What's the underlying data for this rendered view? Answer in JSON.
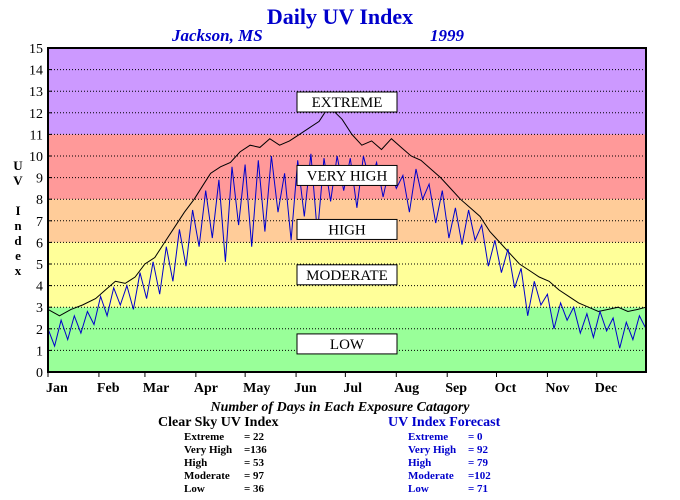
{
  "title": "Daily UV Index",
  "location": "Jackson, MS",
  "year": "1999",
  "ylabel_letters": [
    "U",
    "V",
    "",
    "I",
    "n",
    "d",
    "e",
    "x"
  ],
  "caption": "Number of Days in Each Exposure Catagory",
  "clear_sky": {
    "title": "Clear Sky UV Index",
    "rows": [
      {
        "label": "Extreme",
        "value": "= 22"
      },
      {
        "label": "Very High",
        "value": "=136"
      },
      {
        "label": "High",
        "value": "= 53"
      },
      {
        "label": "Moderate",
        "value": "= 97"
      },
      {
        "label": "Low",
        "value": "= 36"
      }
    ]
  },
  "forecast": {
    "title": "UV Index Forecast",
    "rows": [
      {
        "label": "Extreme",
        "value": "= 0"
      },
      {
        "label": "Very High",
        "value": "= 92"
      },
      {
        "label": "High",
        "value": "= 79"
      },
      {
        "label": "Moderate",
        "value": "=102"
      },
      {
        "label": "Low",
        "value": "= 71"
      }
    ]
  },
  "colors": {
    "low": "#99ff99",
    "moderate": "#ffff99",
    "high": "#ffcc99",
    "very_high": "#ff9999",
    "extreme": "#cc99ff",
    "clear_sky_line": "#000000",
    "forecast_line": "#0000cc"
  },
  "chart_data": {
    "type": "line",
    "ylim": [
      0,
      15
    ],
    "yticks": [
      0,
      1,
      2,
      3,
      4,
      5,
      6,
      7,
      8,
      9,
      10,
      11,
      12,
      13,
      14,
      15
    ],
    "xlim": [
      1,
      365
    ],
    "month_labels": [
      "Jan",
      "Feb",
      "Mar",
      "Apr",
      "May",
      "Jun",
      "Jul",
      "Aug",
      "Sep",
      "Oct",
      "Nov",
      "Dec"
    ],
    "month_start_days": [
      1,
      32,
      60,
      91,
      121,
      152,
      182,
      213,
      244,
      274,
      305,
      335
    ],
    "grid": true,
    "bands": [
      {
        "label": "LOW",
        "from": 0,
        "to": 3,
        "color": "#99ff99"
      },
      {
        "label": "MODERATE",
        "from": 3,
        "to": 6,
        "color": "#ffff99"
      },
      {
        "label": "HIGH",
        "from": 6,
        "to": 8,
        "color": "#ffcc99"
      },
      {
        "label": "VERY HIGH",
        "from": 8,
        "to": 11,
        "color": "#ff9999"
      },
      {
        "label": "EXTREME",
        "from": 11,
        "to": 15,
        "color": "#cc99ff"
      }
    ],
    "band_labels": [
      {
        "text": "EXTREME",
        "y": 12.5
      },
      {
        "text": "VERY HIGH",
        "y": 9.1
      },
      {
        "text": "HIGH",
        "y": 6.6
      },
      {
        "text": "MODERATE",
        "y": 4.5
      },
      {
        "text": "LOW",
        "y": 1.3
      }
    ],
    "series": [
      {
        "name": "Clear Sky UV Index",
        "color": "#000000",
        "points": [
          [
            1,
            2.9
          ],
          [
            8,
            2.6
          ],
          [
            15,
            2.9
          ],
          [
            22,
            3.1
          ],
          [
            30,
            3.4
          ],
          [
            36,
            3.8
          ],
          [
            42,
            4.2
          ],
          [
            48,
            4.1
          ],
          [
            54,
            4.4
          ],
          [
            60,
            5.0
          ],
          [
            66,
            5.3
          ],
          [
            72,
            6.0
          ],
          [
            78,
            6.7
          ],
          [
            84,
            7.4
          ],
          [
            90,
            8.0
          ],
          [
            95,
            8.6
          ],
          [
            100,
            9.2
          ],
          [
            106,
            9.5
          ],
          [
            112,
            9.7
          ],
          [
            118,
            10.2
          ],
          [
            124,
            10.5
          ],
          [
            130,
            10.4
          ],
          [
            136,
            10.8
          ],
          [
            142,
            10.5
          ],
          [
            148,
            10.7
          ],
          [
            154,
            11.0
          ],
          [
            160,
            11.3
          ],
          [
            166,
            11.6
          ],
          [
            172,
            12.3
          ],
          [
            176,
            12.0
          ],
          [
            180,
            11.7
          ],
          [
            186,
            11.0
          ],
          [
            192,
            10.5
          ],
          [
            198,
            10.7
          ],
          [
            204,
            10.3
          ],
          [
            210,
            10.8
          ],
          [
            216,
            10.4
          ],
          [
            222,
            10.0
          ],
          [
            228,
            9.8
          ],
          [
            234,
            9.4
          ],
          [
            240,
            9.0
          ],
          [
            246,
            8.5
          ],
          [
            252,
            8.0
          ],
          [
            258,
            7.6
          ],
          [
            264,
            7.2
          ],
          [
            270,
            6.5
          ],
          [
            276,
            6.0
          ],
          [
            282,
            5.5
          ],
          [
            288,
            5.0
          ],
          [
            294,
            4.7
          ],
          [
            300,
            4.4
          ],
          [
            306,
            4.2
          ],
          [
            312,
            3.8
          ],
          [
            318,
            3.5
          ],
          [
            324,
            3.2
          ],
          [
            330,
            3.0
          ],
          [
            336,
            2.8
          ],
          [
            342,
            2.9
          ],
          [
            348,
            3.0
          ],
          [
            354,
            2.8
          ],
          [
            360,
            2.9
          ],
          [
            365,
            3.0
          ]
        ]
      },
      {
        "name": "UV Index Forecast",
        "color": "#0000cc",
        "points": [
          [
            1,
            2.0
          ],
          [
            5,
            1.2
          ],
          [
            9,
            2.4
          ],
          [
            13,
            1.5
          ],
          [
            17,
            2.6
          ],
          [
            21,
            1.8
          ],
          [
            25,
            2.8
          ],
          [
            29,
            2.2
          ],
          [
            33,
            3.5
          ],
          [
            37,
            2.6
          ],
          [
            41,
            3.9
          ],
          [
            45,
            3.1
          ],
          [
            49,
            4.0
          ],
          [
            53,
            2.9
          ],
          [
            57,
            4.6
          ],
          [
            61,
            3.4
          ],
          [
            65,
            5.1
          ],
          [
            69,
            3.6
          ],
          [
            73,
            5.8
          ],
          [
            77,
            4.2
          ],
          [
            81,
            6.6
          ],
          [
            85,
            4.9
          ],
          [
            89,
            7.5
          ],
          [
            93,
            5.8
          ],
          [
            97,
            8.4
          ],
          [
            101,
            6.2
          ],
          [
            105,
            8.9
          ],
          [
            109,
            5.1
          ],
          [
            113,
            9.5
          ],
          [
            117,
            6.8
          ],
          [
            121,
            9.6
          ],
          [
            125,
            5.8
          ],
          [
            129,
            9.8
          ],
          [
            133,
            6.5
          ],
          [
            137,
            10.0
          ],
          [
            141,
            7.4
          ],
          [
            145,
            9.2
          ],
          [
            149,
            6.1
          ],
          [
            153,
            9.8
          ],
          [
            157,
            7.2
          ],
          [
            161,
            10.1
          ],
          [
            165,
            6.4
          ],
          [
            169,
            9.9
          ],
          [
            173,
            7.9
          ],
          [
            177,
            10.0
          ],
          [
            181,
            8.4
          ],
          [
            185,
            9.9
          ],
          [
            189,
            7.6
          ],
          [
            193,
            10.0
          ],
          [
            197,
            8.8
          ],
          [
            201,
            9.7
          ],
          [
            205,
            8.1
          ],
          [
            209,
            9.5
          ],
          [
            213,
            8.5
          ],
          [
            217,
            9.1
          ],
          [
            221,
            7.4
          ],
          [
            225,
            9.4
          ],
          [
            229,
            8.0
          ],
          [
            233,
            8.7
          ],
          [
            237,
            6.9
          ],
          [
            241,
            8.4
          ],
          [
            245,
            6.2
          ],
          [
            249,
            7.6
          ],
          [
            253,
            5.9
          ],
          [
            257,
            7.5
          ],
          [
            261,
            6.1
          ],
          [
            265,
            6.8
          ],
          [
            269,
            4.9
          ],
          [
            273,
            6.1
          ],
          [
            277,
            4.6
          ],
          [
            281,
            5.7
          ],
          [
            285,
            3.9
          ],
          [
            289,
            4.8
          ],
          [
            293,
            2.6
          ],
          [
            297,
            4.2
          ],
          [
            301,
            3.1
          ],
          [
            305,
            3.6
          ],
          [
            309,
            2.0
          ],
          [
            313,
            3.2
          ],
          [
            317,
            2.4
          ],
          [
            321,
            3.0
          ],
          [
            325,
            1.8
          ],
          [
            329,
            2.7
          ],
          [
            333,
            1.6
          ],
          [
            337,
            2.8
          ],
          [
            341,
            1.9
          ],
          [
            345,
            2.5
          ],
          [
            349,
            1.1
          ],
          [
            353,
            2.3
          ],
          [
            357,
            1.5
          ],
          [
            361,
            2.6
          ],
          [
            365,
            2.0
          ]
        ]
      }
    ]
  }
}
